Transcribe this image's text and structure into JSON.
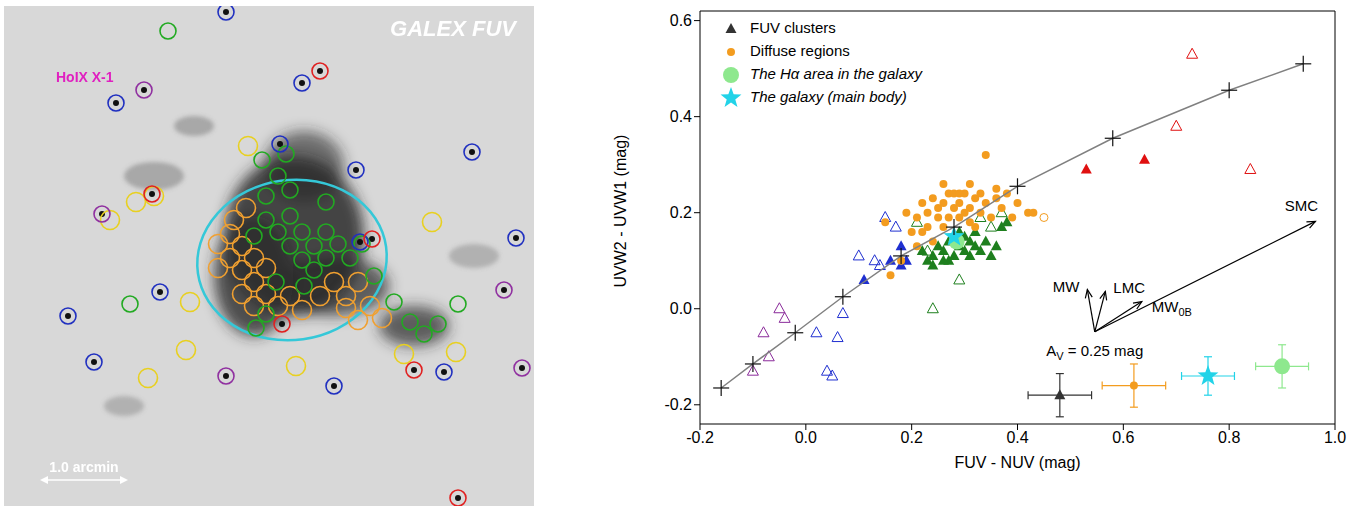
{
  "image_panel": {
    "title": "GALEX FUV",
    "source_label": "HoIX X-1",
    "scale_label": "1.0 arcmin"
  },
  "chart_data": {
    "type": "scatter",
    "x_label": "FUV - NUV (mag)",
    "y_label": "UVW2 - UVW1 (mag)",
    "xlim": [
      -0.2,
      1.0
    ],
    "ylim": [
      -0.24,
      0.62
    ],
    "xticks": [
      {
        "value": -0.2,
        "label": "-0.2"
      },
      {
        "value": 0,
        "label": "0.0"
      },
      {
        "value": 0.2,
        "label": "0.2"
      },
      {
        "value": 0.4,
        "label": "0.4"
      },
      {
        "value": 0.6,
        "label": "0.6"
      },
      {
        "value": 0.8,
        "label": "0.8"
      },
      {
        "value": 1.0,
        "label": "1.0"
      }
    ],
    "yticks": [
      {
        "value": -0.2,
        "label": "-0.2"
      },
      {
        "value": 0,
        "label": "0.0"
      },
      {
        "value": 0.2,
        "label": "0.2"
      },
      {
        "value": 0.4,
        "label": "0.4"
      },
      {
        "value": 0.6,
        "label": "0.6"
      }
    ],
    "legend": "upper left",
    "grid": false,
    "series": [
      {
        "name": "FUV clusters",
        "color": "#333333",
        "marker": "triangle",
        "x": [
          0.22,
          0.23,
          0.24,
          0.25,
          0.26,
          0.27,
          0.27,
          0.28,
          0.29,
          0.3,
          0.3,
          0.31,
          0.32,
          0.32,
          0.33,
          0.34,
          0.35,
          0.36,
          0.37,
          0.38,
          0.28,
          0.26,
          0.31,
          0.29,
          0.24,
          0.11,
          0.16,
          0.18,
          0.18,
          0.19,
          0.53,
          0.64
        ],
        "values": [
          0.12,
          0.1,
          0.11,
          0.13,
          0.12,
          0.1,
          0.14,
          0.11,
          0.13,
          0.12,
          0.15,
          0.11,
          0.13,
          0.16,
          0.12,
          0.14,
          0.11,
          0.13,
          0.17,
          0.18,
          0.15,
          0.1,
          0.14,
          0.16,
          0.09,
          0.06,
          0.1,
          0.09,
          0.13,
          0.1,
          0.29,
          0.31
        ],
        "colors": [
          "#1e7f1e",
          "#1e7f1e",
          "#1e7f1e",
          "#1e7f1e",
          "#1e7f1e",
          "#1e7f1e",
          "#1e7f1e",
          "#1e7f1e",
          "#1e7f1e",
          "#1e7f1e",
          "#1e7f1e",
          "#1e7f1e",
          "#1e7f1e",
          "#1e7f1e",
          "#1e7f1e",
          "#1e7f1e",
          "#1e7f1e",
          "#1e7f1e",
          "#1e7f1e",
          "#1e7f1e",
          "#1e7f1e",
          "#1e7f1e",
          "#1e7f1e",
          "#1e7f1e",
          "#1e7f1e",
          "#1f2fd0",
          "#1f2fd0",
          "#1f2fd0",
          "#1f2fd0",
          "#1f2fd0",
          "#e01010",
          "#e01010"
        ]
      },
      {
        "name": "FUV clusters",
        "color": "#333333",
        "marker": "open-triangle",
        "x": [
          0.15,
          0.1,
          0.07,
          0.02,
          0.05,
          0.04,
          0.06,
          0.17,
          0.13,
          0.14,
          -0.1,
          -0.07,
          -0.08,
          -0.05,
          -0.04,
          0.73,
          0.7,
          0.84,
          0.24,
          0.29,
          0.35,
          0.37,
          0.21,
          0.23,
          0.33
        ],
        "values": [
          0.19,
          0.11,
          -0.01,
          -0.05,
          -0.14,
          -0.13,
          -0.06,
          0.17,
          0.1,
          0.09,
          -0.13,
          -0.1,
          -0.05,
          0.0,
          -0.02,
          0.53,
          0.38,
          0.29,
          0.0,
          0.06,
          0.17,
          0.2,
          0.18,
          0.12,
          0.19
        ],
        "colors": [
          "#1f2fd0",
          "#1f2fd0",
          "#1f2fd0",
          "#1f2fd0",
          "#1f2fd0",
          "#1f2fd0",
          "#1f2fd0",
          "#1f2fd0",
          "#1f2fd0",
          "#1f2fd0",
          "#8a2a9a",
          "#8a2a9a",
          "#8a2a9a",
          "#8a2a9a",
          "#8a2a9a",
          "#e01010",
          "#e01010",
          "#e01010",
          "#1e7f1e",
          "#1e7f1e",
          "#1e7f1e",
          "#1e7f1e",
          "#1e7f1e",
          "#1e7f1e",
          "#1e7f1e"
        ]
      },
      {
        "name": "Diffuse regions",
        "color": "#f39c1f",
        "marker": "circle",
        "x": [
          0.15,
          0.16,
          0.18,
          0.19,
          0.2,
          0.21,
          0.22,
          0.23,
          0.23,
          0.24,
          0.24,
          0.25,
          0.25,
          0.26,
          0.26,
          0.27,
          0.27,
          0.28,
          0.28,
          0.29,
          0.29,
          0.3,
          0.3,
          0.31,
          0.31,
          0.32,
          0.32,
          0.33,
          0.33,
          0.34,
          0.34,
          0.35,
          0.36,
          0.36,
          0.37,
          0.38,
          0.39,
          0.4,
          0.42,
          0.43,
          0.22,
          0.21,
          0.26,
          0.29,
          0.31
        ],
        "values": [
          0.18,
          0.07,
          0.1,
          0.2,
          0.16,
          0.19,
          0.22,
          0.17,
          0.2,
          0.23,
          0.14,
          0.19,
          0.21,
          0.17,
          0.22,
          0.24,
          0.19,
          0.21,
          0.24,
          0.19,
          0.22,
          0.2,
          0.24,
          0.18,
          0.21,
          0.23,
          0.17,
          0.2,
          0.24,
          0.32,
          0.22,
          0.19,
          0.23,
          0.25,
          0.21,
          0.24,
          0.19,
          0.22,
          0.2,
          0.2,
          0.16,
          0.13,
          0.26,
          0.24,
          0.26
        ]
      },
      {
        "name": "Diffuse regions",
        "color": "#f39c1f",
        "marker": "open-circle",
        "x": [
          0.45
        ],
        "values": [
          0.19
        ]
      },
      {
        "name": "The Hα area in the galaxy",
        "color": "#8ee88e",
        "marker": "large_circle",
        "x": [
          0.285
        ],
        "values": [
          0.14
        ]
      },
      {
        "name": "The galaxy (main body)",
        "color": "#22d3e8",
        "marker": "star",
        "x": [
          0.28
        ],
        "values": [
          0.15
        ]
      },
      {
        "type": "line",
        "color": "#808080",
        "marker": "plus",
        "x": [
          -0.16,
          -0.1,
          -0.02,
          0.07,
          0.18,
          0.28,
          0.4,
          0.58,
          0.8,
          0.94
        ],
        "values": [
          -0.165,
          -0.115,
          -0.05,
          0.025,
          0.11,
          0.17,
          0.255,
          0.355,
          0.455,
          0.51
        ]
      }
    ],
    "error_samples": [
      {
        "series": "FUV clusters",
        "x": 0.48,
        "y": -0.18,
        "x_err": 0.06,
        "y_err": 0.045
      },
      {
        "series": "Diffuse regions",
        "x": 0.62,
        "y": -0.16,
        "x_err": 0.06,
        "y_err": 0.045
      },
      {
        "series": "The galaxy (main body)",
        "x": 0.76,
        "y": -0.14,
        "x_err": 0.05,
        "y_err": 0.04
      },
      {
        "series": "The Hα area in the galaxy",
        "x": 0.9,
        "y": -0.12,
        "x_err": 0.05,
        "y_err": 0.045
      }
    ],
    "vectors": {
      "origin": [
        0.546,
        -0.048
      ],
      "items": [
        {
          "label": "MW",
          "dx": -0.014,
          "dy": 0.088
        },
        {
          "label": "LMC",
          "dx": 0.02,
          "dy": 0.084
        },
        {
          "label": "SMC",
          "dx": 0.417,
          "dy": 0.23
        },
        {
          "label": "MW",
          "sub": "0B",
          "dx": 0.089,
          "dy": 0.063
        }
      ],
      "annotation": {
        "text": "A",
        "sub": "V",
        "rest": " = 0.25 mag"
      }
    }
  }
}
